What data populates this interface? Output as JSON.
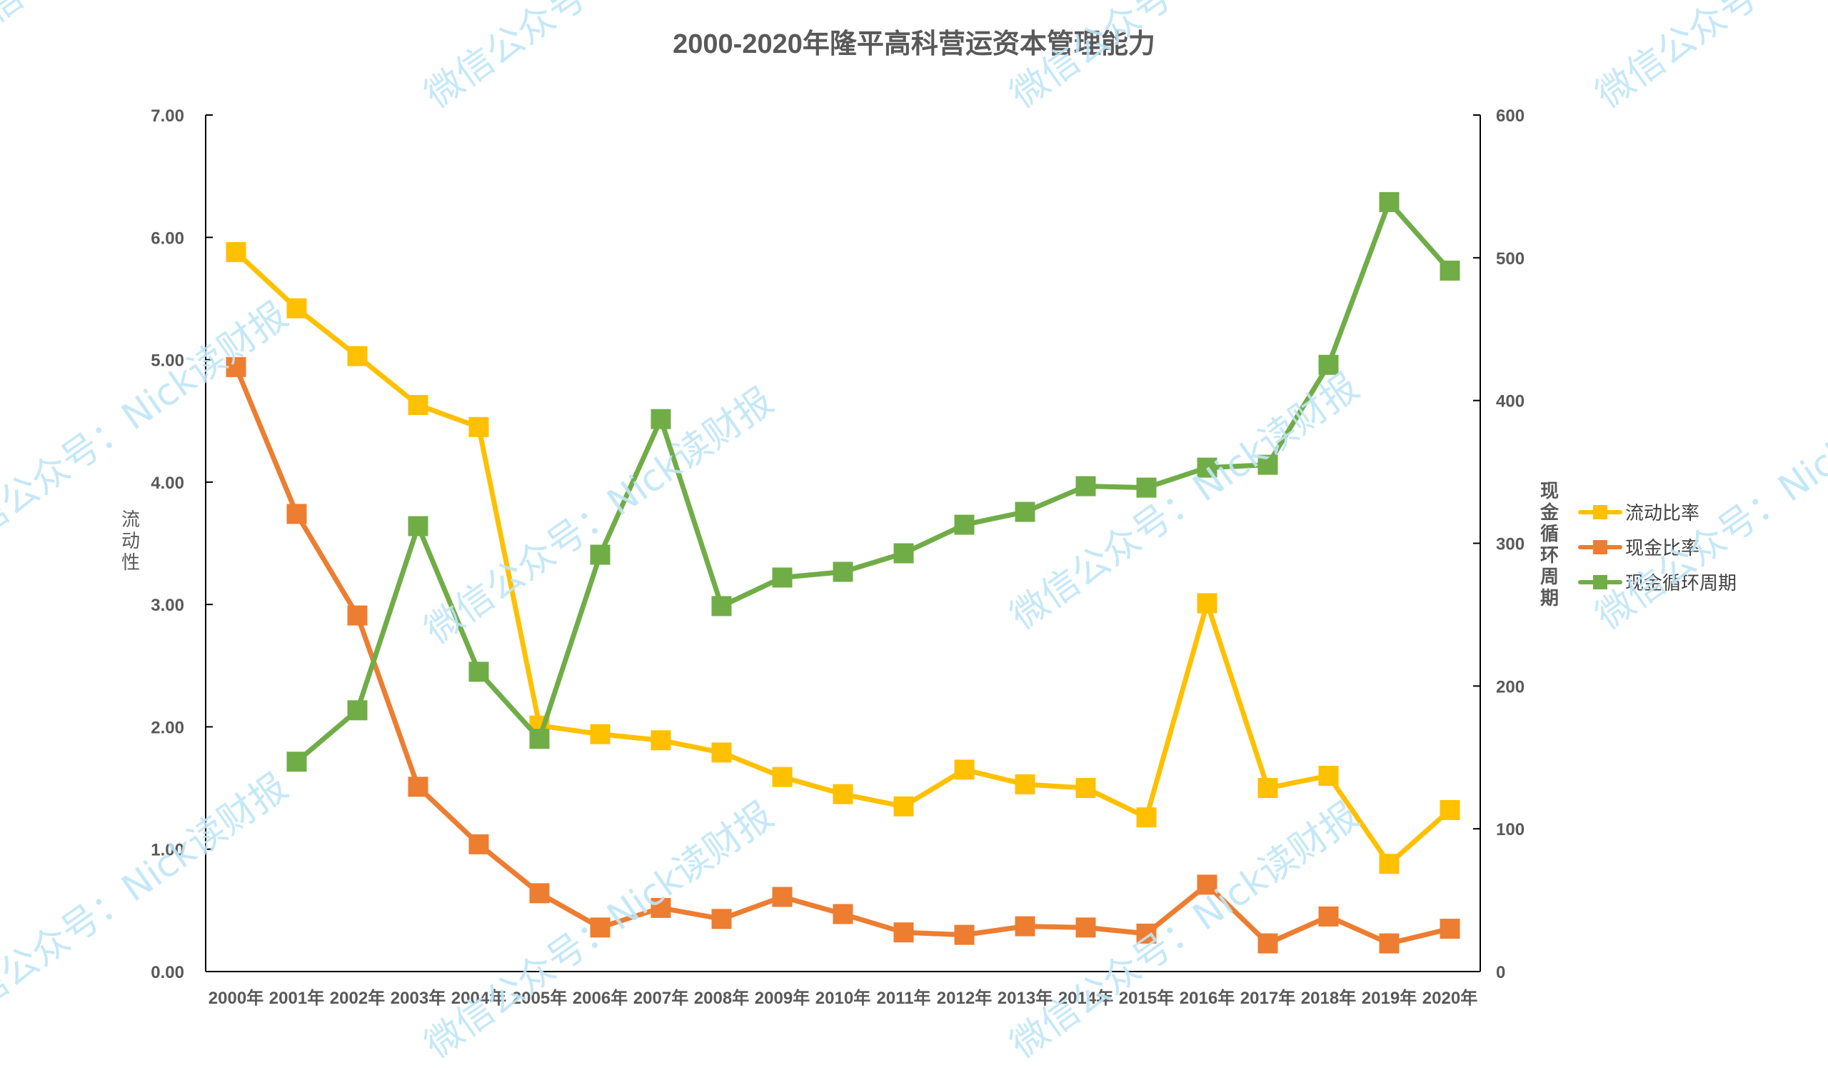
{
  "title": "2000-2020年隆平高科营运资本管理能力",
  "y_left_label": "流动性",
  "y_right_label": "现金循环周期",
  "watermark_text": "微信公众号：Nick读财报",
  "colors": {
    "current_ratio": "#FFC000",
    "cash_ratio": "#ED7D31",
    "ccc": "#70AD47",
    "axis": "#000000",
    "tick_text": "#595959",
    "watermark": "#BFE6F8"
  },
  "legend": [
    {
      "label": "流动比率",
      "color": "#FFC000"
    },
    {
      "label": "现金比率",
      "color": "#ED7D31"
    },
    {
      "label": "现金循环周期",
      "color": "#70AD47"
    }
  ],
  "y_left_ticks": [
    "0.00",
    "1.00",
    "2.00",
    "3.00",
    "4.00",
    "5.00",
    "6.00",
    "7.00"
  ],
  "y_right_ticks": [
    "0",
    "100",
    "200",
    "300",
    "400",
    "500",
    "600"
  ],
  "chart_data": {
    "type": "line",
    "title": "2000-2020年隆平高科营运资本管理能力",
    "xlabel": "",
    "ylabel": "流动性",
    "y2label": "现金循环周期",
    "categories": [
      "2000年",
      "2001年",
      "2002年",
      "2003年",
      "2004年",
      "2005年",
      "2006年",
      "2007年",
      "2008年",
      "2009年",
      "2010年",
      "2011年",
      "2012年",
      "2013年",
      "2014年",
      "2015年",
      "2016年",
      "2017年",
      "2018年",
      "2019年",
      "2020年"
    ],
    "ylim": [
      0,
      7
    ],
    "y2lim": [
      0,
      600
    ],
    "grid": false,
    "legend_position": "right",
    "series": [
      {
        "name": "流动比率",
        "axis": "left",
        "color": "#FFC000",
        "marker": "square",
        "values": [
          5.88,
          5.42,
          5.03,
          4.63,
          4.45,
          2.01,
          1.94,
          1.89,
          1.79,
          1.59,
          1.45,
          1.35,
          1.65,
          1.53,
          1.5,
          1.26,
          3.01,
          1.5,
          1.6,
          0.88,
          1.32
        ]
      },
      {
        "name": "现金比率",
        "axis": "left",
        "color": "#ED7D31",
        "marker": "square",
        "values": [
          4.94,
          3.74,
          2.91,
          1.51,
          1.04,
          0.64,
          0.36,
          0.52,
          0.43,
          0.61,
          0.47,
          0.32,
          0.3,
          0.37,
          0.36,
          0.31,
          0.71,
          0.23,
          0.45,
          0.23,
          0.35
        ]
      },
      {
        "name": "现金循环周期",
        "axis": "right",
        "color": "#70AD47",
        "marker": "square",
        "values": [
          null,
          147,
          183,
          312,
          210,
          163,
          292,
          387,
          256,
          276,
          280,
          293,
          313,
          322,
          340,
          339,
          353,
          355,
          425,
          539,
          491
        ]
      }
    ]
  }
}
